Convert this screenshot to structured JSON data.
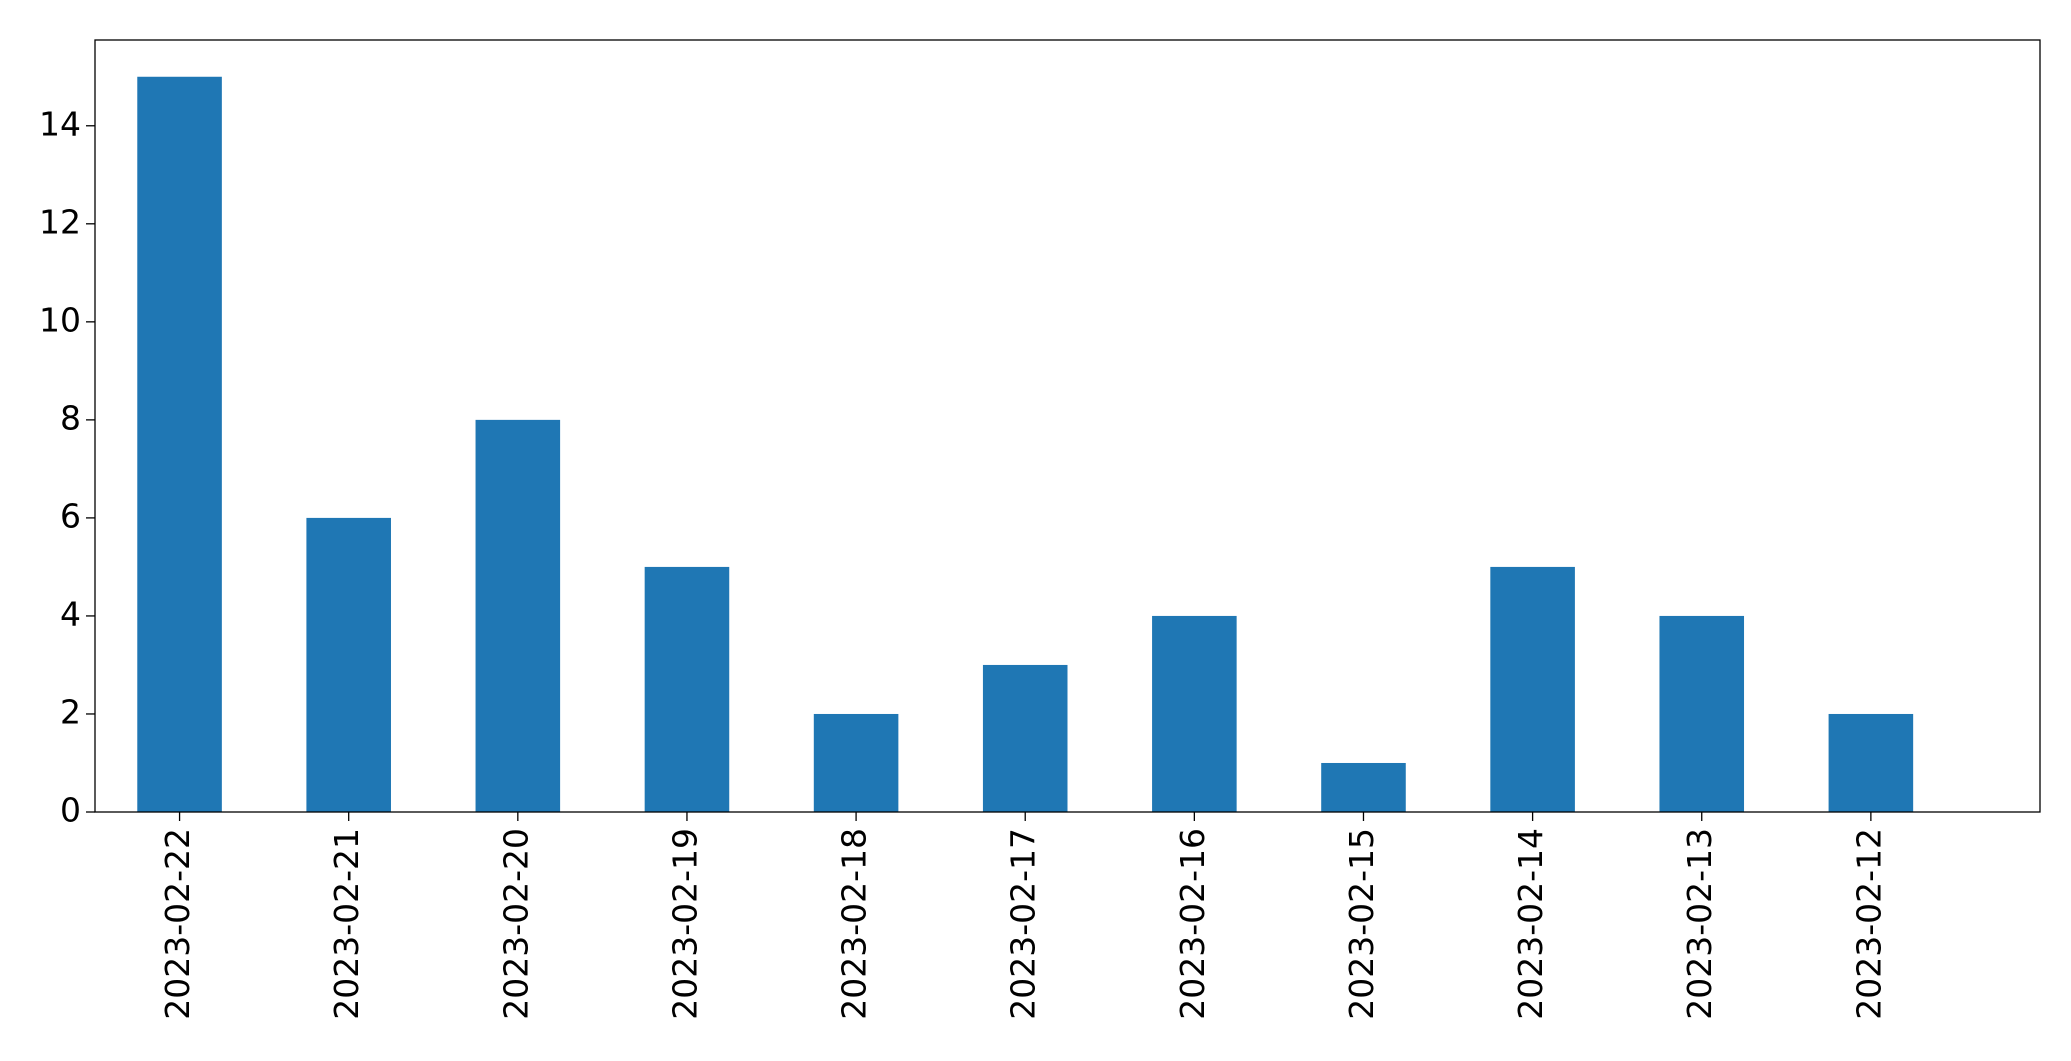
{
  "chart_data": {
    "type": "bar",
    "categories": [
      "2023-02-22",
      "2023-02-21",
      "2023-02-20",
      "2023-02-19",
      "2023-02-18",
      "2023-02-17",
      "2023-02-16",
      "2023-02-15",
      "2023-02-14",
      "2023-02-13",
      "2023-02-12"
    ],
    "values": [
      15,
      6,
      8,
      5,
      2,
      3,
      4,
      1,
      5,
      4,
      2
    ],
    "title": "",
    "xlabel": "",
    "ylabel": "",
    "ylim": [
      0,
      15.75
    ],
    "yticks": [
      0,
      2,
      4,
      6,
      8,
      10,
      12,
      14
    ],
    "grid": false,
    "legend": "none",
    "bar_color": "#1f77b4"
  }
}
